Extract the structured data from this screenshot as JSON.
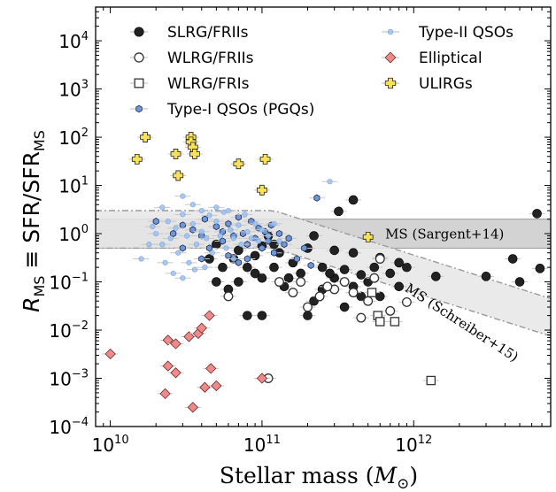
{
  "chart_data": {
    "type": "scatter",
    "x_scale": "log",
    "y_scale": "log",
    "xlim": [
      8000000000.0,
      8000000000000.0
    ],
    "ylim": [
      0.0001,
      50000.0
    ],
    "xlabel": {
      "main": "Stellar mass (",
      "symbol": "M",
      "sub": "⊙",
      "close": ")"
    },
    "ylabel": {
      "R": "R",
      "R_sub": "MS",
      "equiv": "≡ SFR/SFR",
      "sfr_sub": "MS"
    },
    "x_ticks": [
      {
        "value": 10000000000.0,
        "base": "10",
        "exp": "10"
      },
      {
        "value": 100000000000.0,
        "base": "10",
        "exp": "11"
      },
      {
        "value": 1000000000000.0,
        "base": "10",
        "exp": "12"
      }
    ],
    "y_ticks": [
      {
        "value": 0.0001,
        "base": "10",
        "exp": "−4"
      },
      {
        "value": 0.001,
        "base": "10",
        "exp": "−3"
      },
      {
        "value": 0.01,
        "base": "10",
        "exp": "−2"
      },
      {
        "value": 0.1,
        "base": "10",
        "exp": "−1"
      },
      {
        "value": 1.0,
        "base": "10",
        "exp": "0"
      },
      {
        "value": 10.0,
        "base": "10",
        "exp": "1"
      },
      {
        "value": 100.0,
        "base": "10",
        "exp": "2"
      },
      {
        "value": 1000.0,
        "base": "10",
        "exp": "3"
      },
      {
        "value": 10000.0,
        "base": "10",
        "exp": "4"
      }
    ],
    "bands": [
      {
        "name": "MS (Sargent+14)",
        "kind": "sargent",
        "x_range": [
          8000000000.0,
          8000000000000.0
        ],
        "low": 0.5,
        "high": 2.0,
        "center": 1.0,
        "color": "#c8c8c8"
      },
      {
        "name": "MS (Schreiber+15)",
        "kind": "schreiber",
        "x_range": [
          8000000000.0,
          8000000000000.0
        ],
        "knee": 120000000000.0,
        "slope": -1.0,
        "low_factor": 0.5,
        "high_factor": 3.0,
        "color": "#e6e6e6"
      }
    ],
    "band_labels": [
      {
        "text": "MS (Sargent+14)",
        "x": 1600000000000.0,
        "y": 0.8,
        "angle": 0
      },
      {
        "text": "MS (Schreiber+15)",
        "x": 2000000000000.0,
        "y": 0.012,
        "angle": 33
      }
    ],
    "legend": {
      "placement": "top",
      "entries": [
        {
          "label": "SLRG/FRIIs",
          "marker": "circle-filled",
          "color": "#222222"
        },
        {
          "label": "WLRG/FRIIs",
          "marker": "circle-open",
          "color": "#222222"
        },
        {
          "label": "WLRG/FRIs",
          "marker": "square-open",
          "color": "#222222"
        },
        {
          "label": "Type-I QSOs (PGQs)",
          "marker": "hexagon",
          "color": "#6f97d6"
        },
        {
          "label": "Type-II QSOs",
          "marker": "circle-small",
          "color": "#9cc0ee"
        },
        {
          "label": "Elliptical",
          "marker": "diamond",
          "color": "#f08a8a"
        },
        {
          "label": "ULIRGs",
          "marker": "plus",
          "color": "#f7e05a"
        }
      ]
    },
    "series": [
      {
        "name": "SLRG/FRIIs",
        "marker": "circle-filled",
        "color": "#222222",
        "points": [
          [
            220000000000.0,
            0.9
          ],
          [
            320000000000.0,
            2.9
          ],
          [
            400000000000.0,
            5.0
          ],
          [
            6500000000000.0,
            2.6
          ],
          [
            6800000000000.0,
            0.19
          ],
          [
            4500000000000.0,
            0.3
          ],
          [
            3000000000000.0,
            0.13
          ],
          [
            5000000000000.0,
            0.1
          ],
          [
            1400000000000.0,
            0.13
          ],
          [
            900000000000.0,
            0.2
          ],
          [
            800000000000.0,
            0.25
          ],
          [
            600000000000.0,
            0.32
          ],
          [
            550000000000.0,
            0.2
          ],
          [
            500000000000.0,
            0.1
          ],
          [
            450000000000.0,
            0.05
          ],
          [
            400000000000.0,
            0.08
          ],
          [
            350000000000.0,
            0.03
          ],
          [
            350000000000.0,
            0.18
          ],
          [
            300000000000.0,
            0.12
          ],
          [
            280000000000.0,
            0.15
          ],
          [
            250000000000.0,
            0.07
          ],
          [
            220000000000.0,
            0.04
          ],
          [
            200000000000.0,
            0.02
          ],
          [
            180000000000.0,
            0.15
          ],
          [
            160000000000.0,
            0.25
          ],
          [
            150000000000.0,
            0.12
          ],
          [
            140000000000.0,
            0.08
          ],
          [
            130000000000.0,
            0.4
          ],
          [
            120000000000.0,
            0.6
          ],
          [
            120000000000.0,
            0.2
          ],
          [
            110000000000.0,
            0.9
          ],
          [
            100000000000.0,
            0.12
          ],
          [
            100000000000.0,
            0.02
          ],
          [
            90000000000.0,
            0.35
          ],
          [
            90000000000.0,
            0.15
          ],
          [
            80000000000.0,
            0.2
          ],
          [
            80000000000.0,
            0.02
          ],
          [
            70000000000.0,
            0.45
          ],
          [
            70000000000.0,
            0.1
          ],
          [
            65000000000.0,
            0.3
          ],
          [
            60000000000.0,
            0.07
          ],
          [
            55000000000.0,
            0.2
          ],
          [
            50000000000.0,
            0.6
          ],
          [
            50000000000.0,
            0.1
          ],
          [
            45000000000.0,
            0.3
          ],
          [
            200000000000.0,
            0.5
          ],
          [
            250000000000.0,
            0.2
          ],
          [
            400000000000.0,
            0.4
          ],
          [
            700000000000.0,
            0.15
          ],
          [
            300000000000.0,
            0.45
          ],
          [
            100000000000.0,
            0.55
          ],
          [
            450000000000.0,
            0.14
          ],
          [
            600000000000.0,
            0.05
          ],
          [
            800000000000.0,
            0.08
          ]
        ]
      },
      {
        "name": "WLRG/FRIIs",
        "marker": "circle-open",
        "color": "#222222",
        "points": [
          [
            60000000000.0,
            0.05
          ],
          [
            110000000000.0,
            0.001
          ],
          [
            160000000000.0,
            0.06
          ],
          [
            180000000000.0,
            0.1
          ],
          [
            200000000000.0,
            0.03
          ],
          [
            240000000000.0,
            0.05
          ],
          [
            300000000000.0,
            0.07
          ],
          [
            350000000000.0,
            0.1
          ],
          [
            400000000000.0,
            0.06
          ],
          [
            450000000000.0,
            0.018
          ],
          [
            500000000000.0,
            0.04
          ],
          [
            550000000000.0,
            0.12
          ],
          [
            600000000000.0,
            0.3
          ],
          [
            700000000000.0,
            0.025
          ],
          [
            900000000000.0,
            0.038
          ],
          [
            130000000000.0,
            0.1
          ],
          [
            270000000000.0,
            0.08
          ]
        ]
      },
      {
        "name": "WLRG/FRIs",
        "marker": "square-open",
        "color": "#222222",
        "points": [
          [
            530000000000.0,
            0.06
          ],
          [
            580000000000.0,
            0.02
          ],
          [
            600000000000.0,
            0.015
          ],
          [
            750000000000.0,
            0.015
          ],
          [
            1300000000000.0,
            0.0009
          ]
        ]
      },
      {
        "name": "Type-I QSOs (PGQs)",
        "marker": "hexagon",
        "color": "#6f97d6",
        "points": [
          [
            230000000000.0,
            5.5
          ],
          [
            20000000000.0,
            1.8
          ],
          [
            26000000000.0,
            1.0
          ],
          [
            30000000000.0,
            1.5
          ],
          [
            35000000000.0,
            1.2
          ],
          [
            40000000000.0,
            0.9
          ],
          [
            42000000000.0,
            2.0
          ],
          [
            45000000000.0,
            0.5
          ],
          [
            50000000000.0,
            1.4
          ],
          [
            55000000000.0,
            0.7
          ],
          [
            60000000000.0,
            1.6
          ],
          [
            65000000000.0,
            0.9
          ],
          [
            70000000000.0,
            2.2
          ],
          [
            75000000000.0,
            1.0
          ],
          [
            80000000000.0,
            0.6
          ],
          [
            85000000000.0,
            1.8
          ],
          [
            90000000000.0,
            0.8
          ],
          [
            95000000000.0,
            1.3
          ],
          [
            100000000000.0,
            0.5
          ],
          [
            105000000000.0,
            1.1
          ],
          [
            110000000000.0,
            0.7
          ],
          [
            115000000000.0,
            1.5
          ],
          [
            120000000000.0,
            0.4
          ],
          [
            130000000000.0,
            1.0
          ],
          [
            140000000000.0,
            0.6
          ],
          [
            150000000000.0,
            0.8
          ],
          [
            170000000000.0,
            0.3
          ],
          [
            190000000000.0,
            0.5
          ],
          [
            210000000000.0,
            0.22
          ],
          [
            60000000000.0,
            0.35
          ],
          [
            70000000000.0,
            0.25
          ],
          [
            80000000000.0,
            0.3
          ],
          [
            40000000000.0,
            0.3
          ],
          [
            30000000000.0,
            0.5
          ],
          [
            55000000000.0,
            1.1
          ]
        ]
      },
      {
        "name": "Type-II QSOs",
        "marker": "circle-small",
        "color": "#9cc0ee",
        "points": [
          [
            22000000000.0,
            3.5
          ],
          [
            30000000000.0,
            6.0
          ],
          [
            35000000000.0,
            4.0
          ],
          [
            60000000000.0,
            3.0
          ],
          [
            280000000000.0,
            12.0
          ],
          [
            20000000000.0,
            1.0
          ],
          [
            22000000000.0,
            0.6
          ],
          [
            25000000000.0,
            0.8
          ],
          [
            27000000000.0,
            1.3
          ],
          [
            28000000000.0,
            0.4
          ],
          [
            30000000000.0,
            2.5
          ],
          [
            32000000000.0,
            0.9
          ],
          [
            33000000000.0,
            0.25
          ],
          [
            35000000000.0,
            1.6
          ],
          [
            37000000000.0,
            0.6
          ],
          [
            40000000000.0,
            1.1
          ],
          [
            43000000000.0,
            0.8
          ],
          [
            45000000000.0,
            2.4
          ],
          [
            47000000000.0,
            0.4
          ],
          [
            50000000000.0,
            1.8
          ],
          [
            53000000000.0,
            0.9
          ],
          [
            56000000000.0,
            2.8
          ],
          [
            58000000000.0,
            0.5
          ],
          [
            62000000000.0,
            1.2
          ],
          [
            65000000000.0,
            0.8
          ],
          [
            70000000000.0,
            1.5
          ],
          [
            73000000000.0,
            0.6
          ],
          [
            77000000000.0,
            2.5
          ],
          [
            80000000000.0,
            1.1
          ],
          [
            85000000000.0,
            0.8
          ],
          [
            90000000000.0,
            1.6
          ],
          [
            95000000000.0,
            0.7
          ],
          [
            100000000000.0,
            1.2
          ],
          [
            110000000000.0,
            0.9
          ],
          [
            120000000000.0,
            1.6
          ],
          [
            130000000000.0,
            0.7
          ],
          [
            16000000000.0,
            0.3
          ],
          [
            18000000000.0,
            0.6
          ],
          [
            19000000000.0,
            1.4
          ],
          [
            23000000000.0,
            0.25
          ],
          [
            26000000000.0,
            0.15
          ],
          [
            30000000000.0,
            0.12
          ],
          [
            36000000000.0,
            0.18
          ],
          [
            42000000000.0,
            0.2
          ],
          [
            50000000000.0,
            3.5
          ],
          [
            65000000000.0,
            0.3
          ],
          [
            40000000000.0,
            3.0
          ],
          [
            24000000000.0,
            1.8
          ]
        ]
      },
      {
        "name": "Elliptical",
        "marker": "diamond",
        "color": "#f08a8a",
        "points": [
          [
            10000000000.0,
            0.0032
          ],
          [
            24000000000.0,
            0.0062
          ],
          [
            27000000000.0,
            0.0052
          ],
          [
            33000000000.0,
            0.0073
          ],
          [
            38000000000.0,
            0.0085
          ],
          [
            40000000000.0,
            0.011
          ],
          [
            45000000000.0,
            0.02
          ],
          [
            24000000000.0,
            0.0018
          ],
          [
            27000000000.0,
            0.0013
          ],
          [
            42000000000.0,
            0.00065
          ],
          [
            46000000000.0,
            0.0016
          ],
          [
            50000000000.0,
            0.0007
          ],
          [
            35000000000.0,
            0.00025
          ],
          [
            23000000000.0,
            0.00048
          ],
          [
            100000000000.0,
            0.001
          ]
        ]
      },
      {
        "name": "ULIRGs",
        "marker": "plus",
        "color": "#f7e05a",
        "points": [
          [
            15000000000.0,
            35
          ],
          [
            17000000000.0,
            100
          ],
          [
            27000000000.0,
            45
          ],
          [
            28000000000.0,
            16
          ],
          [
            34000000000.0,
            100
          ],
          [
            34000000000.0,
            80
          ],
          [
            35000000000.0,
            62
          ],
          [
            36000000000.0,
            45
          ],
          [
            70000000000.0,
            28
          ],
          [
            100000000000.0,
            8
          ],
          [
            105000000000.0,
            35
          ],
          [
            500000000000.0,
            0.85
          ]
        ]
      }
    ]
  }
}
